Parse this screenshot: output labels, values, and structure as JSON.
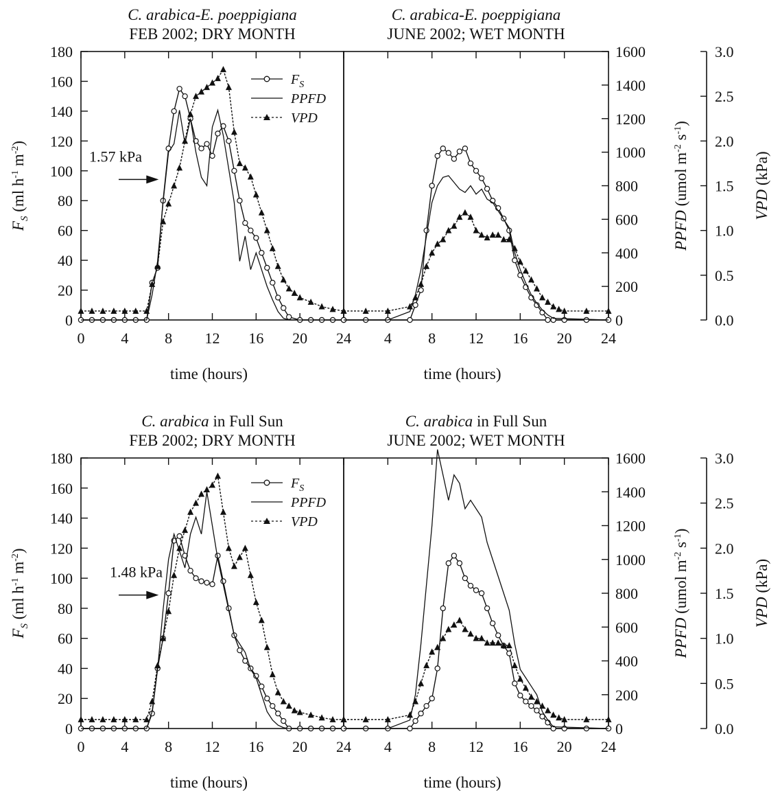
{
  "chart_data": [
    {
      "type": "line",
      "title_line1_species": "C. arabica-E. poeppigiana",
      "title_line1_suffix": "",
      "title_line2": "FEB 2002; DRY MONTH",
      "xlabel": "time (hours)",
      "x_ticks": [
        0,
        4,
        8,
        12,
        16,
        20,
        24
      ],
      "xlim": [
        0,
        24
      ],
      "ylabel_left": "F_S (ml h-1 m-2)",
      "ylim_left": [
        0,
        180
      ],
      "y_ticks_left": [
        0,
        20,
        40,
        60,
        80,
        100,
        120,
        140,
        160,
        180
      ],
      "annotation": "1.57 kPa",
      "annotation_vpd": 1.57,
      "legend": [
        "F_S",
        "PPFD",
        "VPD"
      ],
      "series": [
        {
          "name": "F_S",
          "axis": "left",
          "marker": "circle",
          "x": [
            0,
            1,
            2,
            3,
            4,
            5,
            6,
            6.5,
            7,
            7.5,
            8,
            8.5,
            9,
            9.5,
            10,
            10.5,
            11,
            11.5,
            12,
            12.5,
            13,
            13.5,
            14,
            14.5,
            15,
            15.5,
            16,
            16.5,
            17,
            17.5,
            18,
            18.5,
            19,
            20,
            21,
            22,
            23,
            24
          ],
          "y": [
            0,
            0,
            0,
            0,
            0,
            0,
            0,
            25,
            35,
            80,
            115,
            140,
            155,
            150,
            135,
            120,
            115,
            118,
            110,
            125,
            130,
            120,
            100,
            80,
            65,
            60,
            55,
            45,
            35,
            25,
            15,
            8,
            2,
            0,
            0,
            0,
            0,
            0
          ]
        },
        {
          "name": "PPFD",
          "axis": "right",
          "marker": "none",
          "x": [
            0,
            6,
            6.5,
            7,
            7.5,
            8,
            8.5,
            9,
            9.5,
            10,
            10.5,
            11,
            11.5,
            12,
            12.5,
            13,
            13.5,
            14,
            14.5,
            15,
            15.5,
            16,
            16.5,
            17,
            17.5,
            18,
            18.5,
            19,
            24
          ],
          "y": [
            0,
            0,
            150,
            350,
            700,
            1000,
            1050,
            1250,
            1050,
            1200,
            1000,
            850,
            800,
            1150,
            1250,
            1100,
            900,
            700,
            350,
            500,
            300,
            400,
            300,
            200,
            120,
            50,
            10,
            0,
            0
          ]
        },
        {
          "name": "VPD",
          "axis": "vpd",
          "marker": "triangle",
          "x": [
            0,
            1,
            2,
            3,
            4,
            5,
            6,
            6.5,
            7,
            7.5,
            8,
            8.5,
            9,
            9.5,
            10,
            10.5,
            11,
            11.5,
            12,
            12.5,
            13,
            13.5,
            14,
            14.5,
            15,
            15.5,
            16,
            16.5,
            17,
            17.5,
            18,
            18.5,
            19,
            19.5,
            20,
            21,
            22,
            23,
            24
          ],
          "y": [
            0.1,
            0.1,
            0.1,
            0.1,
            0.1,
            0.1,
            0.1,
            0.4,
            0.6,
            1.1,
            1.3,
            1.5,
            1.7,
            2.0,
            2.3,
            2.5,
            2.55,
            2.6,
            2.65,
            2.7,
            2.8,
            2.6,
            2.1,
            1.75,
            1.7,
            1.6,
            1.4,
            1.2,
            1.0,
            0.8,
            0.6,
            0.45,
            0.35,
            0.3,
            0.25,
            0.2,
            0.15,
            0.12,
            0.1
          ]
        }
      ]
    },
    {
      "type": "line",
      "title_line1_species": "C. arabica-E. poeppigiana",
      "title_line1_suffix": "",
      "title_line2": "JUNE 2002; WET MONTH",
      "xlabel": "time (hours)",
      "x_ticks": [
        0,
        4,
        8,
        12,
        16,
        20,
        24
      ],
      "xlim": [
        0,
        24
      ],
      "ylabel_right": "PPFD (umol m-2 s-1)",
      "ylim_right": [
        0,
        1600
      ],
      "y_ticks_right": [
        0,
        200,
        400,
        600,
        800,
        1000,
        1200,
        1400,
        1600
      ],
      "ylabel_vpd": "VPD (kPa)",
      "ylim_vpd": [
        0,
        3.0
      ],
      "y_ticks_vpd": [
        "0.0",
        "0.5",
        "1.0",
        "1.5",
        "2.0",
        "2.5",
        "3.0"
      ],
      "series": [
        {
          "name": "F_S",
          "axis": "left",
          "marker": "circle",
          "x": [
            0,
            2,
            4,
            6,
            6.5,
            7,
            7.5,
            8,
            8.5,
            9,
            9.5,
            10,
            10.5,
            11,
            11.5,
            12,
            12.5,
            13,
            13.5,
            14,
            14.5,
            15,
            15.5,
            16,
            16.5,
            17,
            17.5,
            18,
            18.5,
            19,
            20,
            22,
            24
          ],
          "y": [
            0,
            0,
            0,
            0,
            10,
            20,
            60,
            90,
            110,
            115,
            112,
            108,
            113,
            115,
            105,
            100,
            95,
            88,
            80,
            75,
            68,
            60,
            40,
            30,
            22,
            15,
            10,
            5,
            0,
            0,
            0,
            0,
            0
          ]
        },
        {
          "name": "PPFD",
          "axis": "right",
          "marker": "none",
          "x": [
            0,
            4,
            6,
            6.5,
            7,
            7.5,
            8,
            8.5,
            9,
            9.5,
            10,
            10.5,
            11,
            11.5,
            12,
            12.5,
            13,
            13.5,
            14,
            14.5,
            15,
            15.5,
            16,
            16.5,
            17,
            17.5,
            18,
            18.5,
            19,
            24
          ],
          "y": [
            0,
            0,
            50,
            150,
            300,
            500,
            700,
            800,
            850,
            860,
            820,
            780,
            760,
            800,
            750,
            780,
            720,
            700,
            650,
            600,
            550,
            400,
            300,
            220,
            150,
            100,
            60,
            30,
            10,
            0
          ]
        },
        {
          "name": "VPD",
          "axis": "vpd",
          "marker": "triangle",
          "x": [
            0,
            2,
            4,
            6,
            6.5,
            7,
            7.5,
            8,
            8.5,
            9,
            9.5,
            10,
            10.5,
            11,
            11.5,
            12,
            12.5,
            13,
            13.5,
            14,
            14.5,
            15,
            15.5,
            16,
            16.5,
            17,
            17.5,
            18,
            18.5,
            19,
            19.5,
            20,
            22,
            24
          ],
          "y": [
            0.1,
            0.1,
            0.1,
            0.15,
            0.25,
            0.4,
            0.6,
            0.75,
            0.85,
            0.9,
            1.0,
            1.05,
            1.15,
            1.2,
            1.15,
            1.0,
            0.95,
            0.92,
            0.95,
            0.95,
            0.9,
            0.9,
            0.8,
            0.65,
            0.55,
            0.45,
            0.35,
            0.25,
            0.2,
            0.15,
            0.12,
            0.1,
            0.1,
            0.1
          ]
        }
      ]
    },
    {
      "type": "line",
      "title_line1_species": "C. arabica",
      "title_line1_suffix": " in Full Sun",
      "title_line2": "FEB 2002; DRY MONTH",
      "xlabel": "time (hours)",
      "x_ticks": [
        0,
        4,
        8,
        12,
        16,
        20,
        24
      ],
      "xlim": [
        0,
        24
      ],
      "ylabel_left": "F_S (ml h-1 m-2)",
      "ylim_left": [
        0,
        180
      ],
      "y_ticks_left": [
        0,
        20,
        40,
        60,
        80,
        100,
        120,
        140,
        160,
        180
      ],
      "annotation": "1.48 kPa",
      "annotation_vpd": 1.48,
      "legend": [
        "F_S",
        "PPFD",
        "VPD"
      ],
      "series": [
        {
          "name": "F_S",
          "axis": "left",
          "marker": "circle",
          "x": [
            0,
            1,
            2,
            3,
            4,
            5,
            6,
            6.5,
            7,
            7.5,
            8,
            8.5,
            9,
            9.5,
            10,
            10.5,
            11,
            11.5,
            12,
            12.5,
            13,
            13.5,
            14,
            14.5,
            15,
            15.5,
            16,
            16.5,
            17,
            17.5,
            18,
            18.5,
            19,
            20,
            21,
            22,
            23,
            24
          ],
          "y": [
            0,
            0,
            0,
            0,
            0,
            0,
            0,
            10,
            40,
            60,
            90,
            125,
            128,
            115,
            105,
            100,
            98,
            97,
            96,
            115,
            98,
            80,
            62,
            52,
            45,
            40,
            35,
            28,
            20,
            15,
            10,
            5,
            0,
            0,
            0,
            0,
            0,
            0
          ]
        },
        {
          "name": "PPFD",
          "axis": "right",
          "marker": "none",
          "x": [
            0,
            6,
            6.5,
            7,
            7.5,
            8,
            8.5,
            9,
            9.5,
            10,
            10.5,
            11,
            11.5,
            12,
            12.5,
            13,
            13.5,
            14,
            14.5,
            15,
            15.5,
            16,
            16.5,
            17,
            17.5,
            18,
            18.5,
            19,
            24
          ],
          "y": [
            0,
            0,
            100,
            350,
            700,
            1000,
            1150,
            1050,
            950,
            1150,
            1250,
            1150,
            1400,
            1200,
            1000,
            850,
            700,
            550,
            500,
            450,
            350,
            300,
            200,
            100,
            50,
            20,
            5,
            0,
            0
          ]
        },
        {
          "name": "VPD",
          "axis": "vpd",
          "marker": "triangle",
          "x": [
            0,
            1,
            2,
            3,
            4,
            5,
            6,
            6.5,
            7,
            7.5,
            8,
            8.5,
            9,
            9.5,
            10,
            10.5,
            11,
            11.5,
            12,
            12.5,
            13,
            13.5,
            14,
            14.5,
            15,
            15.5,
            16,
            16.5,
            17,
            17.5,
            18,
            18.5,
            19,
            19.5,
            20,
            21,
            22,
            23,
            24
          ],
          "y": [
            0.1,
            0.1,
            0.1,
            0.1,
            0.1,
            0.1,
            0.1,
            0.3,
            0.7,
            1.0,
            1.3,
            1.7,
            2.0,
            2.2,
            2.4,
            2.5,
            2.6,
            2.65,
            2.7,
            2.8,
            2.4,
            2.0,
            1.8,
            1.9,
            2.0,
            1.7,
            1.4,
            1.2,
            0.9,
            0.6,
            0.4,
            0.3,
            0.25,
            0.2,
            0.18,
            0.15,
            0.12,
            0.1,
            0.1
          ]
        }
      ]
    },
    {
      "type": "line",
      "title_line1_species": "C. arabica",
      "title_line1_suffix": " in Full Sun",
      "title_line2": "JUNE 2002; WET MONTH",
      "xlabel": "time (hours)",
      "x_ticks": [
        0,
        4,
        8,
        12,
        16,
        20,
        24
      ],
      "xlim": [
        0,
        24
      ],
      "ylabel_right": "PPFD (umol m-2 s-1)",
      "ylim_right": [
        0,
        1600
      ],
      "y_ticks_right": [
        0,
        200,
        400,
        600,
        800,
        1000,
        1200,
        1400,
        1600
      ],
      "ylabel_vpd": "VPD (kPa)",
      "ylim_vpd": [
        0,
        3.0
      ],
      "y_ticks_vpd": [
        "0.0",
        "0.5",
        "1.0",
        "1.5",
        "2.0",
        "2.5",
        "3.0"
      ],
      "series": [
        {
          "name": "F_S",
          "axis": "left",
          "marker": "circle",
          "x": [
            0,
            2,
            4,
            6,
            6.5,
            7,
            7.5,
            8,
            8.5,
            9,
            9.5,
            10,
            10.5,
            11,
            11.5,
            12,
            12.5,
            13,
            13.5,
            14,
            14.5,
            15,
            15.5,
            16,
            16.5,
            17,
            17.5,
            18,
            18.5,
            19,
            20,
            22,
            24
          ],
          "y": [
            0,
            0,
            0,
            0,
            5,
            10,
            15,
            20,
            40,
            80,
            110,
            115,
            110,
            100,
            95,
            92,
            90,
            80,
            70,
            62,
            55,
            50,
            30,
            22,
            18,
            15,
            12,
            8,
            4,
            0,
            0,
            0,
            0
          ]
        },
        {
          "name": "PPFD",
          "axis": "right",
          "marker": "none",
          "x": [
            0,
            4,
            6,
            6.5,
            7,
            7.5,
            8,
            8.5,
            9,
            9.5,
            10,
            10.5,
            11,
            11.5,
            12,
            12.5,
            13,
            13.5,
            14,
            14.5,
            15,
            15.5,
            16,
            16.5,
            17,
            17.5,
            18,
            18.5,
            19,
            24
          ],
          "y": [
            0,
            0,
            50,
            200,
            500,
            850,
            1200,
            1650,
            1500,
            1350,
            1500,
            1450,
            1300,
            1350,
            1300,
            1250,
            1100,
            1000,
            900,
            800,
            700,
            500,
            350,
            300,
            250,
            200,
            100,
            50,
            10,
            0
          ]
        },
        {
          "name": "VPD",
          "axis": "vpd",
          "marker": "triangle",
          "x": [
            0,
            2,
            4,
            6,
            6.5,
            7,
            7.5,
            8,
            8.5,
            9,
            9.5,
            10,
            10.5,
            11,
            11.5,
            12,
            12.5,
            13,
            13.5,
            14,
            14.5,
            15,
            15.5,
            16,
            16.5,
            17,
            17.5,
            18,
            18.5,
            19,
            19.5,
            20,
            22,
            24
          ],
          "y": [
            0.1,
            0.1,
            0.1,
            0.15,
            0.3,
            0.5,
            0.7,
            0.85,
            0.9,
            1.0,
            1.1,
            1.15,
            1.2,
            1.1,
            1.05,
            1.0,
            1.0,
            0.95,
            0.95,
            0.95,
            0.92,
            0.92,
            0.7,
            0.55,
            0.45,
            0.35,
            0.3,
            0.25,
            0.2,
            0.15,
            0.12,
            0.1,
            0.1,
            0.1
          ]
        }
      ]
    }
  ]
}
